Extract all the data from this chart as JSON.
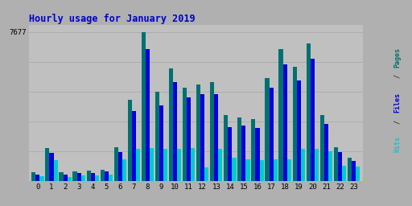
{
  "title": "Hourly usage for January 2019",
  "ytick_label": "7677",
  "hours": [
    0,
    1,
    2,
    3,
    4,
    5,
    6,
    7,
    8,
    9,
    10,
    11,
    12,
    13,
    14,
    15,
    16,
    17,
    18,
    19,
    20,
    21,
    22,
    23
  ],
  "pages": [
    480,
    1700,
    480,
    520,
    550,
    600,
    1750,
    4200,
    7677,
    4600,
    5800,
    4800,
    5000,
    5100,
    3400,
    3300,
    3200,
    5300,
    6800,
    5900,
    7100,
    3400,
    1750,
    1200
  ],
  "files": [
    350,
    1450,
    340,
    420,
    440,
    490,
    1500,
    3600,
    6800,
    3900,
    5100,
    4300,
    4500,
    4500,
    2800,
    2850,
    2750,
    4800,
    6000,
    5200,
    6300,
    2950,
    1500,
    1050
  ],
  "hits": [
    240,
    1100,
    230,
    300,
    310,
    360,
    1150,
    1650,
    1700,
    1650,
    1650,
    1700,
    700,
    1650,
    1200,
    1150,
    1100,
    1150,
    1150,
    1650,
    1650,
    1550,
    800,
    750
  ],
  "color_pages": "#007070",
  "color_files": "#0000dd",
  "color_hits": "#00cccc",
  "bg_color": "#b0b0b0",
  "plot_bg": "#c0c0c0",
  "title_color": "#0000cc",
  "max_val": 7677,
  "bar_width": 0.3,
  "grid_color": "#aaaaaa",
  "grid_levels": [
    1535,
    3070,
    4605,
    6140,
    7677
  ]
}
